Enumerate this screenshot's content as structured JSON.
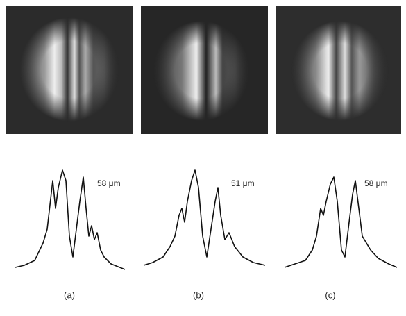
{
  "panels": [
    {
      "width_label": "58 μm",
      "caption": "(a)"
    },
    {
      "width_label": "51 μm",
      "caption": "(b)"
    },
    {
      "width_label": "58 μm",
      "caption": "(c)"
    }
  ]
}
